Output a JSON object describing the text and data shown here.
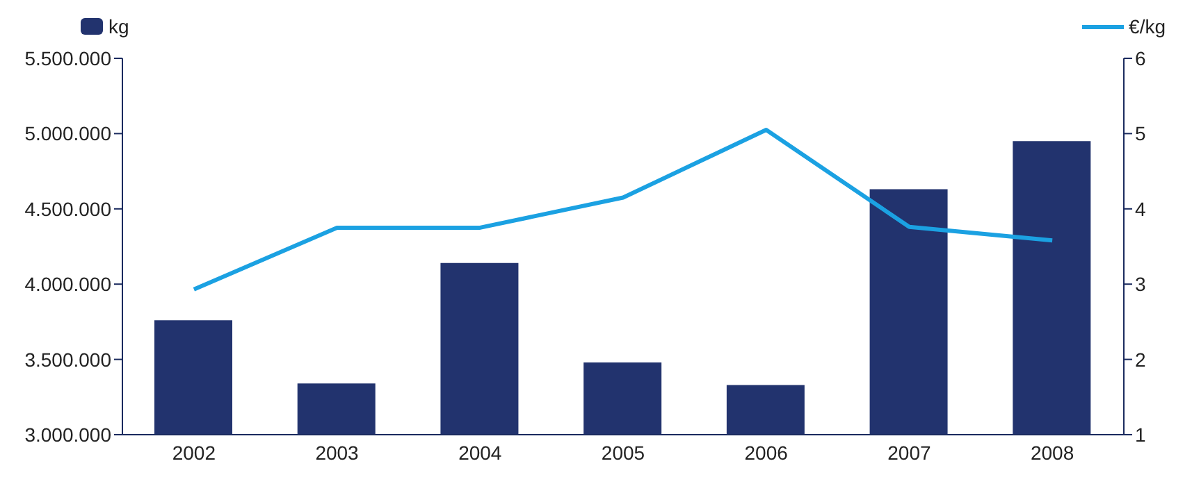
{
  "chart_data": {
    "type": "bar",
    "categories": [
      "2002",
      "2003",
      "2004",
      "2005",
      "2006",
      "2007",
      "2008"
    ],
    "series": [
      {
        "name": "kg",
        "color": "#22336e",
        "values": [
          3760000,
          3340000,
          4140000,
          3480000,
          3330000,
          4630000,
          4950000
        ]
      },
      {
        "name": "€/kg",
        "type": "line",
        "axis": "y2",
        "color": "#1ba1e2",
        "values": [
          2.93,
          3.75,
          3.75,
          4.15,
          5.05,
          3.76,
          3.58
        ]
      }
    ],
    "ylim": [
      3000000,
      5500000
    ],
    "yticks": [
      {
        "value": 3000000,
        "label": "3.000.000"
      },
      {
        "value": 3500000,
        "label": "3.500.000"
      },
      {
        "value": 4000000,
        "label": "4.000.000"
      },
      {
        "value": 4500000,
        "label": "4.500.000"
      },
      {
        "value": 5000000,
        "label": "5.000.000"
      },
      {
        "value": 5500000,
        "label": "5.500.000"
      }
    ],
    "y2lim": [
      1,
      6
    ],
    "y2ticks": [
      1,
      2,
      3,
      4,
      5,
      6
    ],
    "legend": "top",
    "grid": false,
    "marker": "none"
  }
}
